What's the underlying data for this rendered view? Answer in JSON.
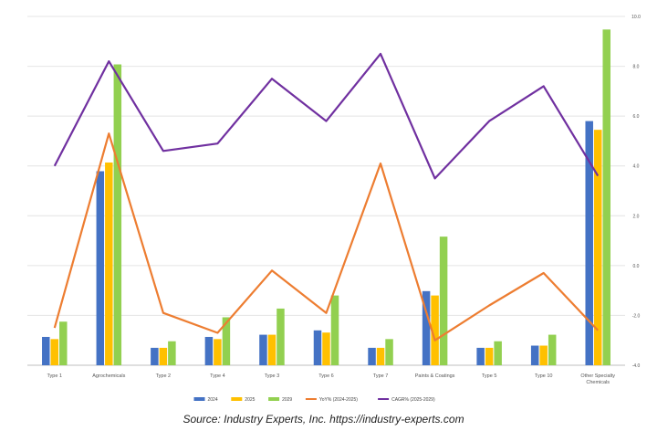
{
  "chart_data": {
    "type": "bar",
    "categories": [
      "Type 1",
      "Agrochemicals",
      "Type 2",
      "Type 4",
      "Type 3",
      "Type 6",
      "Type 7",
      "Paints & Coatings",
      "Type 5",
      "Type 10",
      "Other Specialty Chemicals"
    ],
    "series": [
      {
        "name": "2024",
        "kind": "bar",
        "axis": "left",
        "color": "#4472C4",
        "values": [
          1.3,
          8.9,
          0.8,
          1.3,
          1.4,
          1.6,
          0.8,
          3.4,
          0.8,
          0.9,
          11.2
        ]
      },
      {
        "name": "2025",
        "kind": "bar",
        "axis": "left",
        "color": "#FFC000",
        "values": [
          1.2,
          9.3,
          0.8,
          1.2,
          1.4,
          1.5,
          0.8,
          3.2,
          0.8,
          0.9,
          10.8
        ]
      },
      {
        "name": "2029",
        "kind": "bar",
        "axis": "left",
        "color": "#92D050",
        "values": [
          2.0,
          13.8,
          1.1,
          2.2,
          2.6,
          3.2,
          1.2,
          5.9,
          1.1,
          1.4,
          15.4
        ]
      },
      {
        "name": "YoY% (2024-2025)",
        "kind": "line",
        "axis": "right",
        "color": "#ED7D31",
        "values": [
          -2.5,
          5.3,
          -1.9,
          -2.7,
          -0.2,
          -1.9,
          4.1,
          -3.0,
          -1.6,
          -0.3,
          -2.6
        ]
      },
      {
        "name": "CAGR% (2025-2029)",
        "kind": "line",
        "axis": "right",
        "color": "#7030A0",
        "values": [
          4.0,
          8.2,
          4.6,
          4.9,
          7.5,
          5.8,
          8.5,
          3.5,
          5.8,
          7.2,
          3.6
        ]
      }
    ],
    "y_right_ticks": [
      "10.0",
      "8.0",
      "6.0",
      "4.0",
      "2.0",
      "0.0",
      "-2.0",
      "-4.0"
    ],
    "ylim_left": [
      0,
      16
    ],
    "ylim_right": [
      -4,
      10
    ],
    "legend_position": "bottom",
    "grid": true
  },
  "source_text": "Source: Industry Experts, Inc. https://industry-experts.com"
}
